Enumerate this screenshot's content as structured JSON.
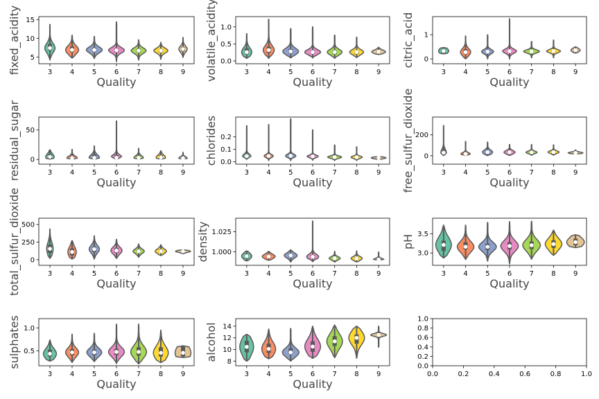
{
  "chart_data": [
    {
      "type": "violin",
      "xlabel": "Quality",
      "ylabel": "fixed_acidity",
      "categories": [
        "3",
        "4",
        "5",
        "6",
        "7",
        "8",
        "9"
      ],
      "ylim": [
        3.2,
        15.8
      ],
      "yticks": [
        5,
        10,
        15
      ],
      "tick_labels": [
        "5",
        "10",
        "15"
      ],
      "series": [
        {
          "color": "#66c2a5",
          "median": 7.4,
          "q1": 6.8,
          "q3": 8.5,
          "min": 4.2,
          "max": 13.8,
          "width": 0.55
        },
        {
          "color": "#fc8d62",
          "median": 6.9,
          "q1": 6.3,
          "q3": 7.8,
          "min": 4.7,
          "max": 10.9,
          "width": 0.7
        },
        {
          "color": "#8da0cb",
          "median": 6.9,
          "q1": 6.4,
          "q3": 7.5,
          "min": 4.6,
          "max": 10.5,
          "width": 0.85
        },
        {
          "color": "#e78ac3",
          "median": 6.8,
          "q1": 6.3,
          "q3": 7.3,
          "min": 3.8,
          "max": 14.4,
          "width": 0.85
        },
        {
          "color": "#a6d854",
          "median": 6.7,
          "q1": 6.2,
          "q3": 7.2,
          "min": 4.2,
          "max": 9.6,
          "width": 0.8
        },
        {
          "color": "#ffd92f",
          "median": 6.7,
          "q1": 6.2,
          "q3": 7.1,
          "min": 4.4,
          "max": 8.9,
          "width": 0.75
        },
        {
          "color": "#e5c494",
          "median": 7.1,
          "q1": 6.5,
          "q3": 7.6,
          "min": 4.9,
          "max": 10.3,
          "width": 0.45
        }
      ]
    },
    {
      "type": "violin",
      "xlabel": "Quality",
      "ylabel": "volatile_acidity",
      "categories": [
        "3",
        "4",
        "5",
        "6",
        "7",
        "8",
        "9"
      ],
      "ylim": [
        -0.08,
        1.3
      ],
      "yticks": [
        0,
        0.5,
        1
      ],
      "tick_labels": [
        "0.0",
        "0.5",
        "1.0"
      ],
      "series": [
        {
          "color": "#66c2a5",
          "median": 0.26,
          "q1": 0.2,
          "q3": 0.37,
          "min": 0.08,
          "max": 0.8,
          "width": 0.55
        },
        {
          "color": "#fc8d62",
          "median": 0.32,
          "q1": 0.24,
          "q3": 0.42,
          "min": 0.08,
          "max": 1.22,
          "width": 0.6
        },
        {
          "color": "#8da0cb",
          "median": 0.28,
          "q1": 0.22,
          "q3": 0.35,
          "min": 0.09,
          "max": 0.95,
          "width": 0.85
        },
        {
          "color": "#e78ac3",
          "median": 0.26,
          "q1": 0.21,
          "q3": 0.31,
          "min": 0.09,
          "max": 1.0,
          "width": 0.85
        },
        {
          "color": "#a6d854",
          "median": 0.26,
          "q1": 0.2,
          "q3": 0.31,
          "min": 0.08,
          "max": 0.76,
          "width": 0.8
        },
        {
          "color": "#ffd92f",
          "median": 0.26,
          "q1": 0.2,
          "q3": 0.3,
          "min": 0.1,
          "max": 0.7,
          "width": 0.75
        },
        {
          "color": "#e5c494",
          "median": 0.27,
          "q1": 0.24,
          "q3": 0.31,
          "min": 0.19,
          "max": 0.4,
          "width": 0.75
        }
      ]
    },
    {
      "type": "violin",
      "xlabel": "Quality",
      "ylabel": "citric_acid",
      "categories": [
        "3",
        "4",
        "5",
        "6",
        "7",
        "8",
        "9"
      ],
      "ylim": [
        -0.2,
        1.75
      ],
      "yticks": [
        0,
        1
      ],
      "tick_labels": [
        "0",
        "1"
      ],
      "series": [
        {
          "color": "#66c2a5",
          "median": 0.33,
          "q1": 0.25,
          "q3": 0.41,
          "min": 0.21,
          "max": 0.47,
          "width": 0.55
        },
        {
          "color": "#fc8d62",
          "median": 0.28,
          "q1": 0.2,
          "q3": 0.4,
          "min": 0.0,
          "max": 0.95,
          "width": 0.55
        },
        {
          "color": "#8da0cb",
          "median": 0.3,
          "q1": 0.24,
          "q3": 0.36,
          "min": 0.0,
          "max": 1.0,
          "width": 0.65
        },
        {
          "color": "#e78ac3",
          "median": 0.32,
          "q1": 0.26,
          "q3": 0.38,
          "min": 0.0,
          "max": 1.66,
          "width": 0.75
        },
        {
          "color": "#a6d854",
          "median": 0.31,
          "q1": 0.27,
          "q3": 0.36,
          "min": 0.05,
          "max": 0.72,
          "width": 0.85
        },
        {
          "color": "#ffd92f",
          "median": 0.32,
          "q1": 0.27,
          "q3": 0.36,
          "min": 0.05,
          "max": 0.78,
          "width": 0.75
        },
        {
          "color": "#e5c494",
          "median": 0.36,
          "q1": 0.3,
          "q3": 0.4,
          "min": 0.24,
          "max": 0.5,
          "width": 0.5
        }
      ]
    },
    {
      "type": "violin",
      "xlabel": "Quality",
      "ylabel": "residual_sugar",
      "categories": [
        "3",
        "4",
        "5",
        "6",
        "7",
        "8",
        "9"
      ],
      "ylim": [
        -8,
        72
      ],
      "yticks": [
        0,
        50
      ],
      "tick_labels": [
        "0",
        "50"
      ],
      "series": [
        {
          "color": "#66c2a5",
          "median": 4.5,
          "q1": 2.0,
          "q3": 9.0,
          "min": 0.7,
          "max": 16.5,
          "width": 0.45
        },
        {
          "color": "#fc8d62",
          "median": 2.5,
          "q1": 1.5,
          "q3": 6.0,
          "min": 0.7,
          "max": 17.5,
          "width": 0.55
        },
        {
          "color": "#8da0cb",
          "median": 3.0,
          "q1": 1.7,
          "q3": 8.5,
          "min": 0.6,
          "max": 23.5,
          "width": 0.55
        },
        {
          "color": "#e78ac3",
          "median": 3.0,
          "q1": 1.6,
          "q3": 7.5,
          "min": 0.6,
          "max": 66.0,
          "width": 0.55
        },
        {
          "color": "#a6d854",
          "median": 3.0,
          "q1": 1.7,
          "q3": 6.5,
          "min": 0.7,
          "max": 19.3,
          "width": 0.5
        },
        {
          "color": "#ffd92f",
          "median": 3.5,
          "q1": 1.8,
          "q3": 7.5,
          "min": 0.8,
          "max": 14.8,
          "width": 0.5
        },
        {
          "color": "#e5c494",
          "median": 2.2,
          "q1": 1.6,
          "q3": 5.0,
          "min": 0.8,
          "max": 12.0,
          "width": 0.45
        }
      ]
    },
    {
      "type": "violin",
      "xlabel": "Quality",
      "ylabel": "chlorides",
      "categories": [
        "3",
        "4",
        "5",
        "6",
        "7",
        "8",
        "9"
      ],
      "ylim": [
        -0.02,
        0.36
      ],
      "yticks": [
        0,
        0.1,
        0.2
      ],
      "tick_labels": [
        "0.0",
        "0.1",
        "0.2"
      ],
      "series": [
        {
          "color": "#66c2a5",
          "median": 0.045,
          "q1": 0.037,
          "q3": 0.06,
          "min": 0.02,
          "max": 0.29,
          "width": 0.45
        },
        {
          "color": "#fc8d62",
          "median": 0.046,
          "q1": 0.038,
          "q3": 0.055,
          "min": 0.01,
          "max": 0.3,
          "width": 0.5
        },
        {
          "color": "#8da0cb",
          "median": 0.047,
          "q1": 0.039,
          "q3": 0.058,
          "min": 0.01,
          "max": 0.346,
          "width": 0.55
        },
        {
          "color": "#e78ac3",
          "median": 0.043,
          "q1": 0.036,
          "q3": 0.05,
          "min": 0.01,
          "max": 0.26,
          "width": 0.6
        },
        {
          "color": "#a6d854",
          "median": 0.037,
          "q1": 0.031,
          "q3": 0.044,
          "min": 0.01,
          "max": 0.135,
          "width": 0.75
        },
        {
          "color": "#ffd92f",
          "median": 0.036,
          "q1": 0.03,
          "q3": 0.043,
          "min": 0.01,
          "max": 0.12,
          "width": 0.6
        },
        {
          "color": "#e5c494",
          "median": 0.031,
          "q1": 0.026,
          "q3": 0.036,
          "min": 0.02,
          "max": 0.04,
          "width": 0.8
        }
      ]
    },
    {
      "type": "violin",
      "xlabel": "Quality",
      "ylabel": "free_sulfur_dioxide",
      "categories": [
        "3",
        "4",
        "5",
        "6",
        "7",
        "8",
        "9"
      ],
      "ylim": [
        -80,
        370
      ],
      "yticks": [
        0,
        200
      ],
      "tick_labels": [
        "0",
        "200"
      ],
      "series": [
        {
          "color": "#66c2a5",
          "median": 30,
          "q1": 16,
          "q3": 60,
          "min": 3,
          "max": 289,
          "width": 0.3
        },
        {
          "color": "#fc8d62",
          "median": 18,
          "q1": 10,
          "q3": 28,
          "min": 3,
          "max": 138,
          "width": 0.5
        },
        {
          "color": "#8da0cb",
          "median": 35,
          "q1": 22,
          "q3": 50,
          "min": 2,
          "max": 131,
          "width": 0.55
        },
        {
          "color": "#e78ac3",
          "median": 34,
          "q1": 24,
          "q3": 46,
          "min": 3,
          "max": 112,
          "width": 0.6
        },
        {
          "color": "#a6d854",
          "median": 33,
          "q1": 25,
          "q3": 41,
          "min": 5,
          "max": 108,
          "width": 0.6
        },
        {
          "color": "#ffd92f",
          "median": 35,
          "q1": 27,
          "q3": 44,
          "min": 6,
          "max": 105,
          "width": 0.6
        },
        {
          "color": "#e5c494",
          "median": 28,
          "q1": 24,
          "q3": 35,
          "min": 18,
          "max": 57,
          "width": 0.8
        }
      ]
    },
    {
      "type": "violin",
      "xlabel": "Quality",
      "ylabel": "total_sulfur_dioxide",
      "categories": [
        "3",
        "4",
        "5",
        "6",
        "7",
        "8",
        "9"
      ],
      "ylim": [
        -80,
        590
      ],
      "yticks": [
        0,
        250,
        500
      ],
      "tick_labels": [
        "0",
        "250",
        "500"
      ],
      "series": [
        {
          "color": "#66c2a5",
          "median": 155,
          "q1": 95,
          "q3": 215,
          "min": 19,
          "max": 440,
          "width": 0.35
        },
        {
          "color": "#fc8d62",
          "median": 110,
          "q1": 60,
          "q3": 160,
          "min": 10,
          "max": 272,
          "width": 0.45
        },
        {
          "color": "#8da0cb",
          "median": 150,
          "q1": 110,
          "q3": 185,
          "min": 9,
          "max": 344,
          "width": 0.55
        },
        {
          "color": "#e78ac3",
          "median": 130,
          "q1": 100,
          "q3": 165,
          "min": 18,
          "max": 294,
          "width": 0.6
        },
        {
          "color": "#a6d854",
          "median": 120,
          "q1": 100,
          "q3": 145,
          "min": 34,
          "max": 229,
          "width": 0.6
        },
        {
          "color": "#ffd92f",
          "median": 120,
          "q1": 100,
          "q3": 145,
          "min": 59,
          "max": 212,
          "width": 0.6
        },
        {
          "color": "#e5c494",
          "median": 119,
          "q1": 110,
          "q3": 130,
          "min": 85,
          "max": 140,
          "width": 0.8
        }
      ]
    },
    {
      "type": "violin",
      "xlabel": "Quality",
      "ylabel": "density",
      "categories": [
        "3",
        "4",
        "5",
        "6",
        "7",
        "8",
        "9"
      ],
      "ylim": [
        0.983,
        1.042
      ],
      "yticks": [
        1.0,
        1.025
      ],
      "tick_labels": [
        "1.000",
        "1.025"
      ],
      "series": [
        {
          "color": "#66c2a5",
          "median": 0.9945,
          "q1": 0.992,
          "q3": 0.997,
          "min": 0.9885,
          "max": 1.001,
          "width": 0.55
        },
        {
          "color": "#fc8d62",
          "median": 0.9941,
          "q1": 0.9925,
          "q3": 0.9963,
          "min": 0.9893,
          "max": 1.0004,
          "width": 0.7
        },
        {
          "color": "#8da0cb",
          "median": 0.9953,
          "q1": 0.9931,
          "q3": 0.9973,
          "min": 0.9872,
          "max": 1.0024,
          "width": 0.7
        },
        {
          "color": "#e78ac3",
          "median": 0.9937,
          "q1": 0.9917,
          "q3": 0.996,
          "min": 0.9876,
          "max": 1.039,
          "width": 0.65
        },
        {
          "color": "#a6d854",
          "median": 0.9918,
          "q1": 0.9907,
          "q3": 0.9935,
          "min": 0.9871,
          "max": 1.0004,
          "width": 0.6
        },
        {
          "color": "#ffd92f",
          "median": 0.9917,
          "q1": 0.9905,
          "q3": 0.9937,
          "min": 0.9871,
          "max": 1.001,
          "width": 0.6
        },
        {
          "color": "#e5c494",
          "median": 0.9903,
          "q1": 0.9898,
          "q3": 0.9918,
          "min": 0.9896,
          "max": 0.9997,
          "width": 0.55
        }
      ]
    },
    {
      "type": "violin",
      "xlabel": "Quality",
      "ylabel": "pH",
      "categories": [
        "3",
        "4",
        "5",
        "6",
        "7",
        "8",
        "9"
      ],
      "ylim": [
        2.68,
        3.9
      ],
      "yticks": [
        3.0,
        3.5
      ],
      "tick_labels": [
        "3.0",
        "3.5"
      ],
      "series": [
        {
          "color": "#66c2a5",
          "median": 3.21,
          "q1": 3.05,
          "q3": 3.32,
          "min": 2.87,
          "max": 3.72,
          "width": 0.85
        },
        {
          "color": "#fc8d62",
          "median": 3.16,
          "q1": 3.09,
          "q3": 3.28,
          "min": 2.83,
          "max": 3.72,
          "width": 0.9
        },
        {
          "color": "#8da0cb",
          "median": 3.16,
          "q1": 3.08,
          "q3": 3.24,
          "min": 2.79,
          "max": 3.79,
          "width": 0.95
        },
        {
          "color": "#e78ac3",
          "median": 3.18,
          "q1": 3.09,
          "q3": 3.28,
          "min": 2.72,
          "max": 3.81,
          "width": 0.95
        },
        {
          "color": "#a6d854",
          "median": 3.2,
          "q1": 3.1,
          "q3": 3.3,
          "min": 2.84,
          "max": 3.82,
          "width": 0.95
        },
        {
          "color": "#ffd92f",
          "median": 3.23,
          "q1": 3.13,
          "q3": 3.33,
          "min": 2.94,
          "max": 3.59,
          "width": 0.9
        },
        {
          "color": "#e5c494",
          "median": 3.28,
          "q1": 3.2,
          "q3": 3.37,
          "min": 3.14,
          "max": 3.47,
          "width": 0.95
        }
      ]
    },
    {
      "type": "violin",
      "xlabel": "Quality",
      "ylabel": "sulphates",
      "categories": [
        "3",
        "4",
        "5",
        "6",
        "7",
        "8",
        "9"
      ],
      "ylim": [
        0.18,
        1.2
      ],
      "yticks": [
        0.5,
        1.0
      ],
      "tick_labels": [
        "0.5",
        "1.0"
      ],
      "series": [
        {
          "color": "#66c2a5",
          "median": 0.44,
          "q1": 0.38,
          "q3": 0.53,
          "min": 0.28,
          "max": 0.74,
          "width": 0.7
        },
        {
          "color": "#fc8d62",
          "median": 0.47,
          "q1": 0.41,
          "q3": 0.54,
          "min": 0.25,
          "max": 0.87,
          "width": 0.7
        },
        {
          "color": "#8da0cb",
          "median": 0.47,
          "q1": 0.41,
          "q3": 0.53,
          "min": 0.27,
          "max": 0.88,
          "width": 0.8
        },
        {
          "color": "#e78ac3",
          "median": 0.48,
          "q1": 0.41,
          "q3": 0.55,
          "min": 0.23,
          "max": 1.08,
          "width": 0.85
        },
        {
          "color": "#a6d854",
          "median": 0.48,
          "q1": 0.4,
          "q3": 0.58,
          "min": 0.22,
          "max": 1.08,
          "width": 0.85
        },
        {
          "color": "#ffd92f",
          "median": 0.46,
          "q1": 0.38,
          "q3": 0.58,
          "min": 0.25,
          "max": 0.95,
          "width": 0.8
        },
        {
          "color": "#e5c494",
          "median": 0.46,
          "q1": 0.38,
          "q3": 0.6,
          "min": 0.36,
          "max": 0.61,
          "width": 0.85
        }
      ]
    },
    {
      "type": "violin",
      "xlabel": "Quality",
      "ylabel": "alcohol",
      "categories": [
        "3",
        "4",
        "5",
        "6",
        "7",
        "8",
        "9"
      ],
      "ylim": [
        7.2,
        15.3
      ],
      "yticks": [
        8,
        10,
        12,
        14
      ],
      "tick_labels": [
        "8",
        "10",
        "12",
        "14"
      ],
      "series": [
        {
          "color": "#66c2a5",
          "median": 10.45,
          "q1": 9.5,
          "q3": 11.5,
          "min": 8.0,
          "max": 12.6,
          "width": 0.75
        },
        {
          "color": "#fc8d62",
          "median": 10.1,
          "q1": 9.4,
          "q3": 11.0,
          "min": 8.4,
          "max": 13.5,
          "width": 0.75
        },
        {
          "color": "#8da0cb",
          "median": 9.5,
          "q1": 9.2,
          "q3": 10.2,
          "min": 8.0,
          "max": 13.6,
          "width": 0.9
        },
        {
          "color": "#e78ac3",
          "median": 10.5,
          "q1": 9.6,
          "q3": 11.4,
          "min": 8.5,
          "max": 14.0,
          "width": 0.85
        },
        {
          "color": "#a6d854",
          "median": 11.4,
          "q1": 10.6,
          "q3": 12.3,
          "min": 8.6,
          "max": 14.2,
          "width": 0.85
        },
        {
          "color": "#ffd92f",
          "median": 12.0,
          "q1": 11.0,
          "q3": 12.6,
          "min": 8.5,
          "max": 14.0,
          "width": 0.85
        },
        {
          "color": "#e5c494",
          "median": 12.5,
          "q1": 12.4,
          "q3": 12.7,
          "min": 10.4,
          "max": 14.0,
          "width": 0.85
        }
      ]
    }
  ],
  "empty_axes": {
    "x_tick_labels": [
      "0.0",
      "0.2",
      "0.4",
      "0.6",
      "0.8",
      "1.0"
    ],
    "y_tick_labels": [
      "0.0",
      "0.2",
      "0.4",
      "0.6",
      "0.8",
      "1.0"
    ]
  }
}
